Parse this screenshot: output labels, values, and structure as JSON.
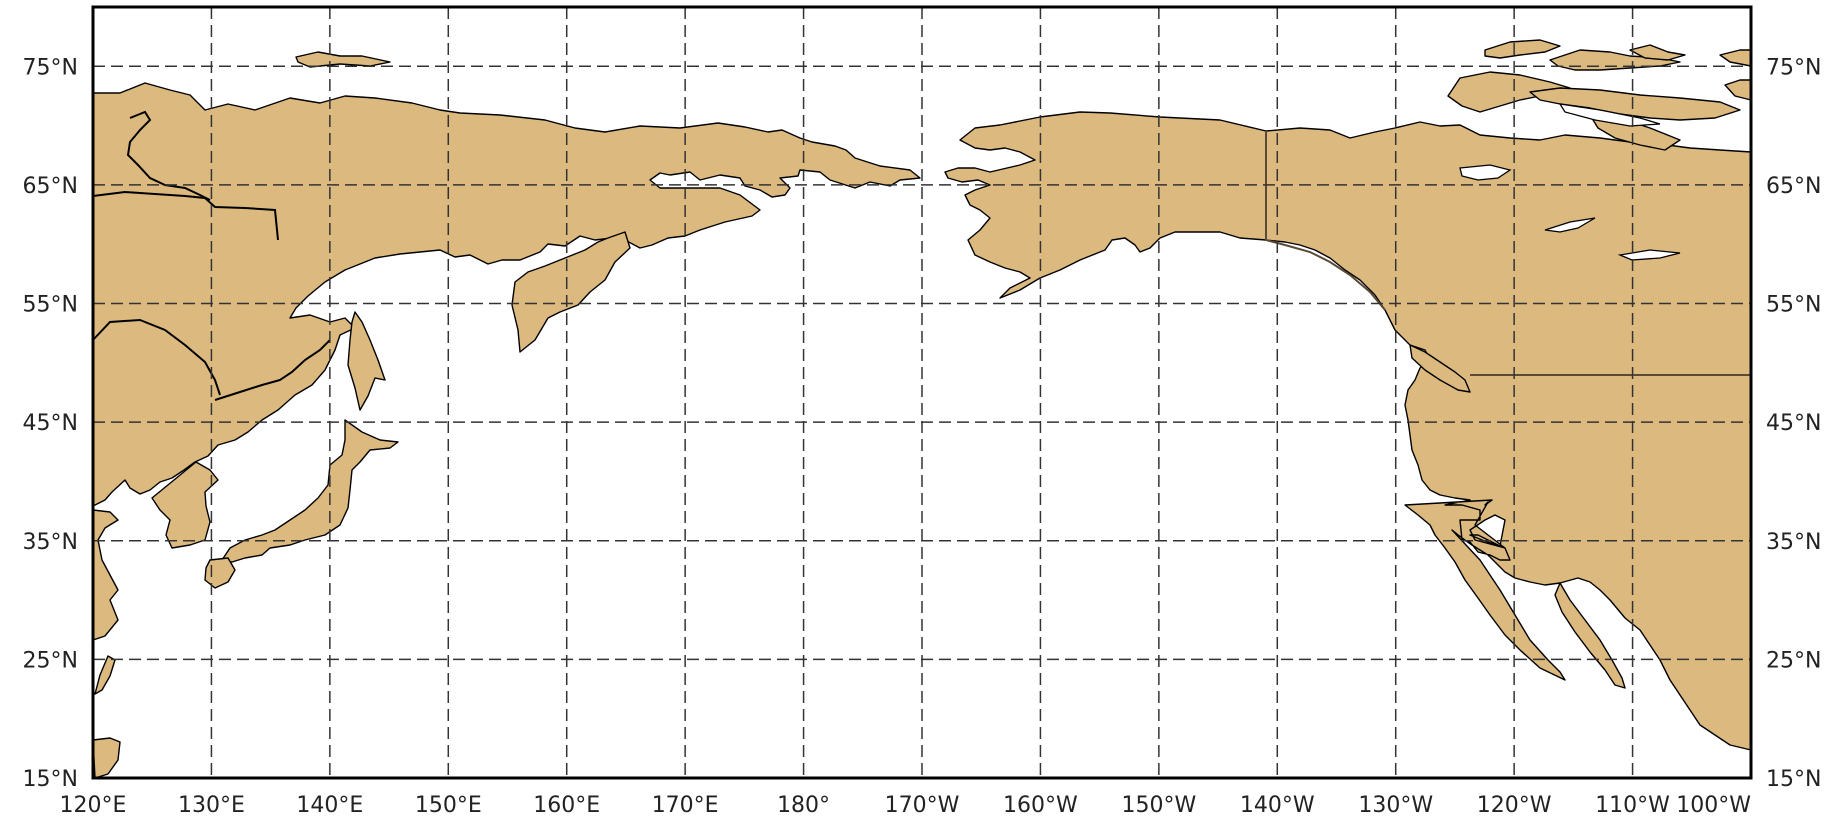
{
  "map": {
    "projection": "plate-carree",
    "extent": {
      "lon_min": 120,
      "lon_max": 260,
      "lat_min": 15,
      "lat_max": 80
    },
    "colors": {
      "land": "#dcb97f",
      "coastline": "#000000",
      "border": "#5a4a36",
      "ocean": "#ffffff",
      "gridline": "#333333",
      "frame": "#000000"
    },
    "gridlines": {
      "style": "dashed",
      "longitudes": [
        130,
        140,
        150,
        160,
        170,
        180,
        190,
        200,
        210,
        220,
        230,
        240,
        250
      ],
      "latitudes": [
        25,
        35,
        45,
        55,
        65,
        75
      ]
    },
    "lon_labels": [
      {
        "lon": 120,
        "text": "120°E"
      },
      {
        "lon": 130,
        "text": "130°E"
      },
      {
        "lon": 140,
        "text": "140°E"
      },
      {
        "lon": 150,
        "text": "150°E"
      },
      {
        "lon": 160,
        "text": "160°E"
      },
      {
        "lon": 170,
        "text": "170°E"
      },
      {
        "lon": 180,
        "text": "180°"
      },
      {
        "lon": 190,
        "text": "170°W"
      },
      {
        "lon": 200,
        "text": "160°W"
      },
      {
        "lon": 210,
        "text": "150°W"
      },
      {
        "lon": 220,
        "text": "140°W"
      },
      {
        "lon": 230,
        "text": "130°W"
      },
      {
        "lon": 240,
        "text": "120°W"
      },
      {
        "lon": 250,
        "text": "110°W"
      },
      {
        "lon": 260,
        "text": "100°W"
      }
    ],
    "lat_labels": [
      {
        "lat": 15,
        "text": "15°N"
      },
      {
        "lat": 25,
        "text": "25°N"
      },
      {
        "lat": 35,
        "text": "35°N"
      },
      {
        "lat": 45,
        "text": "45°N"
      },
      {
        "lat": 55,
        "text": "55°N"
      },
      {
        "lat": 65,
        "text": "65°N"
      },
      {
        "lat": 75,
        "text": "75°N"
      }
    ]
  }
}
